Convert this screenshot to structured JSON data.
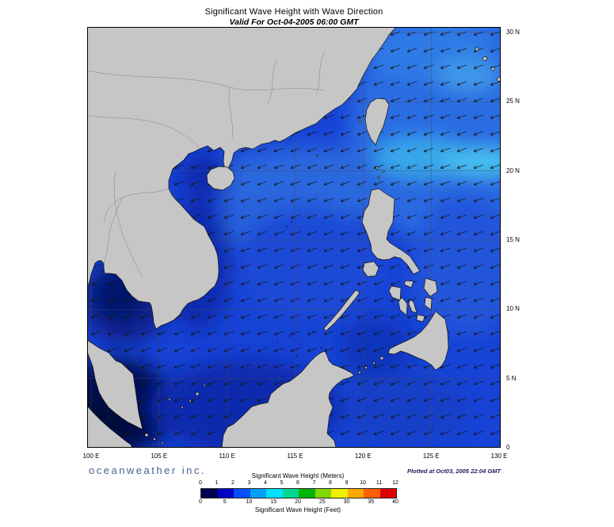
{
  "header": {
    "title": "Significant Wave Height with Wave Direction",
    "subtitle": "Valid For Oct-04-2005 06:00 GMT"
  },
  "map": {
    "lon_labels": [
      "100 E",
      "105 E",
      "110 E",
      "115 E",
      "120 E",
      "125 E",
      "130 E"
    ],
    "lat_labels": [
      "30 N",
      "25 N",
      "20 N",
      "15 N",
      "10 N",
      "5 N",
      "0"
    ],
    "ocean_base_color": "#1743d6",
    "land_color": "#c6c6c6"
  },
  "legend": {
    "meters_label": "Significant Wave Height (Meters)",
    "feet_label": "Significant Wave Height (Feet)",
    "meters_ticks": [
      "0",
      "1",
      "2",
      "3",
      "4",
      "5",
      "6",
      "7",
      "8",
      "9",
      "10",
      "11",
      "12"
    ],
    "feet_ticks": [
      "0",
      "5",
      "10",
      "15",
      "20",
      "25",
      "30",
      "35",
      "40"
    ],
    "colors": [
      "#000050",
      "#0000c8",
      "#0050ff",
      "#00a0ff",
      "#00e0ff",
      "#00d890",
      "#00b400",
      "#80d800",
      "#f0f000",
      "#ffa800",
      "#ff6000",
      "#e00000"
    ]
  },
  "footer": {
    "credit": "oceanweather inc.",
    "plotted": "Plotted at Oct03, 2005 22:04 GMT"
  }
}
